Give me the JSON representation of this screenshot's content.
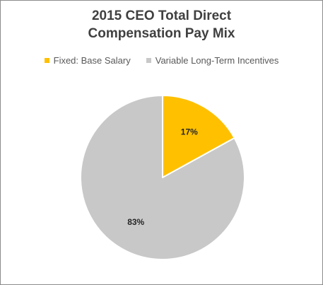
{
  "chart_data": {
    "type": "pie",
    "title_line1": "2015 CEO Total Direct",
    "title_line2": "Compensation  Pay Mix",
    "legend_placement": "top",
    "slices": [
      {
        "name": "Fixed: Base Salary",
        "value": 17,
        "label": "17%",
        "color": "#FFC000"
      },
      {
        "name": "Variable Long-Term Incentives",
        "value": 83,
        "label": "83%",
        "color": "#C8C8C8"
      }
    ]
  }
}
